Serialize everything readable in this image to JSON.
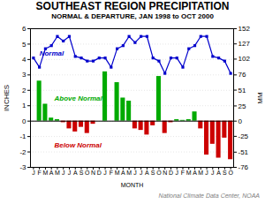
{
  "chart_data": {
    "type": "bar",
    "title": "SOUTHEAST REGION PRECIPITATION",
    "subtitle": "NORMAL & DEPARTURE, JAN 1998 to OCT 2000",
    "xlabel": "MONTH",
    "ylabel": "INCHES",
    "y2label": "MM",
    "footnote": "National Climate Data Center, NOAA",
    "categories": [
      "J",
      "F",
      "M",
      "A",
      "M",
      "J",
      "J",
      "A",
      "S",
      "O",
      "N",
      "D",
      "J",
      "F",
      "M",
      "A",
      "M",
      "J",
      "J",
      "A",
      "S",
      "O",
      "N",
      "D",
      "J",
      "F",
      "M",
      "A",
      "M",
      "J",
      "J",
      "A",
      "S",
      "O"
    ],
    "series": [
      {
        "type": "bar",
        "colors": [
          "#00aa00",
          "#00aa00",
          "#00aa00",
          "#00aa00",
          "#00aa00",
          "#cc0000",
          "#cc0000",
          "#cc0000",
          "#cc0000",
          "#cc0000",
          "#cc0000",
          "#00aa00",
          "#00aa00",
          "#00aa00",
          "#00aa00",
          "#00aa00",
          "#00aa00",
          "#cc0000",
          "#cc0000",
          "#cc0000",
          "#cc0000",
          "#00aa00",
          "#cc0000",
          "#cc0000",
          "#00aa00",
          "#00aa00",
          "#00aa00",
          "#00aa00",
          "#cc0000",
          "#cc0000",
          "#cc0000",
          "#cc0000",
          "#cc0000",
          "#cc0000"
        ],
        "values": [
          0.0,
          2.6,
          1.1,
          0.2,
          0.1,
          -0.1,
          -0.5,
          -0.7,
          -0.4,
          -0.8,
          -0.2,
          0.0,
          3.2,
          0.0,
          2.5,
          1.5,
          1.3,
          -0.5,
          -0.6,
          -0.9,
          -0.3,
          2.9,
          -0.8,
          -0.1,
          0.1,
          0.05,
          0.1,
          0.6,
          -0.5,
          -2.2,
          -1.5,
          -2.4,
          -1.1,
          -2.5
        ]
      },
      {
        "name": "Normal",
        "type": "line",
        "color": "#0000cc",
        "marker": "square",
        "values": [
          4.1,
          3.5,
          4.7,
          4.9,
          5.5,
          5.2,
          5.5,
          4.2,
          4.1,
          3.9,
          3.9,
          4.1,
          4.1,
          3.5,
          4.7,
          4.9,
          5.5,
          5.1,
          5.5,
          5.5,
          4.1,
          3.9,
          3.1,
          4.1,
          4.1,
          3.5,
          4.7,
          4.9,
          5.5,
          5.5,
          4.2,
          4.1,
          3.9,
          3.1
        ]
      }
    ],
    "annotations": [
      {
        "text": "Normal",
        "color": "#0000cc"
      },
      {
        "text": "Above Normal",
        "color": "#00aa00"
      },
      {
        "text": "Below Normal",
        "color": "#cc0000"
      }
    ],
    "ylim": [
      -3,
      6
    ],
    "yticks": [
      -3,
      -2,
      -1,
      0,
      1,
      2,
      3,
      4,
      5,
      6
    ],
    "y2lim": [
      -76,
      152
    ],
    "y2ticks": [
      -76,
      -51,
      -25,
      0,
      25,
      51,
      76,
      102,
      127,
      152
    ],
    "grid": true
  }
}
